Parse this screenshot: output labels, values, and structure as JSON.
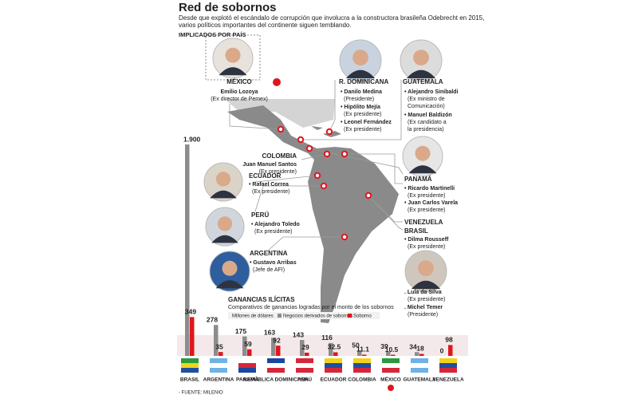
{
  "header": {
    "title": "Red de sobornos",
    "subtitle": [
      "Desde que explotó el escándalo de corrupción que involucra a la constructora brasileña Odebrecht en 2015,",
      "varios políticos importantes del continente siguen temblando."
    ],
    "section": "IMPLICADOS POR PAÍS"
  },
  "countries": [
    {
      "label": "MÉXICO",
      "people": [
        {
          "name": "Emilio Lozoya",
          "role": [
            "(Ex director de Pemex)"
          ]
        }
      ]
    },
    {
      "label": "R. DOMINICANA",
      "people": [
        {
          "name": "• Danilo Medina",
          "role": [
            "(Presidente)"
          ]
        },
        {
          "name": "• Hipólito Mejía",
          "role": [
            "(Ex presidente)"
          ]
        },
        {
          "name": "• Leonel Fernández",
          "role": [
            "(Ex presidente)"
          ]
        }
      ]
    },
    {
      "label": "GUATEMALA",
      "people": [
        {
          "name": "• Alejandro Sinibaldi",
          "role": [
            "(Ex ministro de",
            "Comunicación)"
          ]
        },
        {
          "name": "• Manuel Baldizón",
          "role": [
            "(Ex candidato a",
            "la presidencia)"
          ]
        }
      ]
    },
    {
      "label": "COLOMBIA",
      "people": [
        {
          "name": "Juan Manuel Santos",
          "role": [
            "(Ex presidente)"
          ]
        }
      ]
    },
    {
      "label": "ECUADOR",
      "people": [
        {
          "name": "• Rafael Correa",
          "role": [
            "(Ex presidente)"
          ]
        }
      ]
    },
    {
      "label": "PERÚ",
      "people": [
        {
          "name": "• Alejandro Toledo",
          "role": [
            "(Ex presidente)"
          ]
        }
      ]
    },
    {
      "label": "ARGENTINA",
      "people": [
        {
          "name": "• Gustavo Arribas",
          "role": [
            "(Jefe de AFI)"
          ]
        }
      ]
    },
    {
      "label": "PANAMÁ",
      "people": [
        {
          "name": "• Ricardo Martinelli",
          "role": [
            "(Ex presidente)"
          ]
        },
        {
          "name": "• Juan Carlos Varela",
          "role": [
            "(Ex presidente)"
          ]
        }
      ]
    },
    {
      "label": "VENEZUELA",
      "people": []
    },
    {
      "label": "BRASIL",
      "people": [
        {
          "name": "• Dilma Rousseff",
          "role": [
            "(Ex presidente)"
          ]
        },
        {
          "name": ". Lula da Silva",
          "role": [
            "(Ex presidente)"
          ]
        },
        {
          "name": ". Michel Temer",
          "role": [
            "(Presidente)"
          ]
        }
      ]
    }
  ],
  "chart_data": {
    "type": "bar",
    "title": "GANANCIAS ILÍCITAS",
    "subtitle": "Comparativos de ganancias logradas por el monto de los sobornos",
    "legend_note": "Millones de dólares",
    "categories": [
      "BRASIL",
      "ARGENTINA",
      "PANAMÁ",
      "REPÚBLICA DOMINICANA",
      "PERÚ",
      "ECUADOR",
      "COLOMBIA",
      "MÉXICO",
      "GUATEMALA",
      "VENEZUELA"
    ],
    "ylim": [
      0,
      1900
    ],
    "series": [
      {
        "name": "Negocios derivados de sobornos",
        "color": "#8c8c8c",
        "values": [
          1900,
          278,
          175,
          163,
          143,
          116,
          50,
          39,
          34,
          0
        ],
        "value_labels": [
          "1.900",
          "278",
          "175",
          "163",
          "143",
          "116",
          "50",
          "39",
          "34",
          "0"
        ]
      },
      {
        "name": "Soborno",
        "color": "#e0161f",
        "values": [
          349,
          35,
          59,
          92,
          29,
          32.5,
          11.1,
          10.5,
          18,
          98
        ]
      }
    ]
  },
  "source": "- FUENTE: MILENIO"
}
